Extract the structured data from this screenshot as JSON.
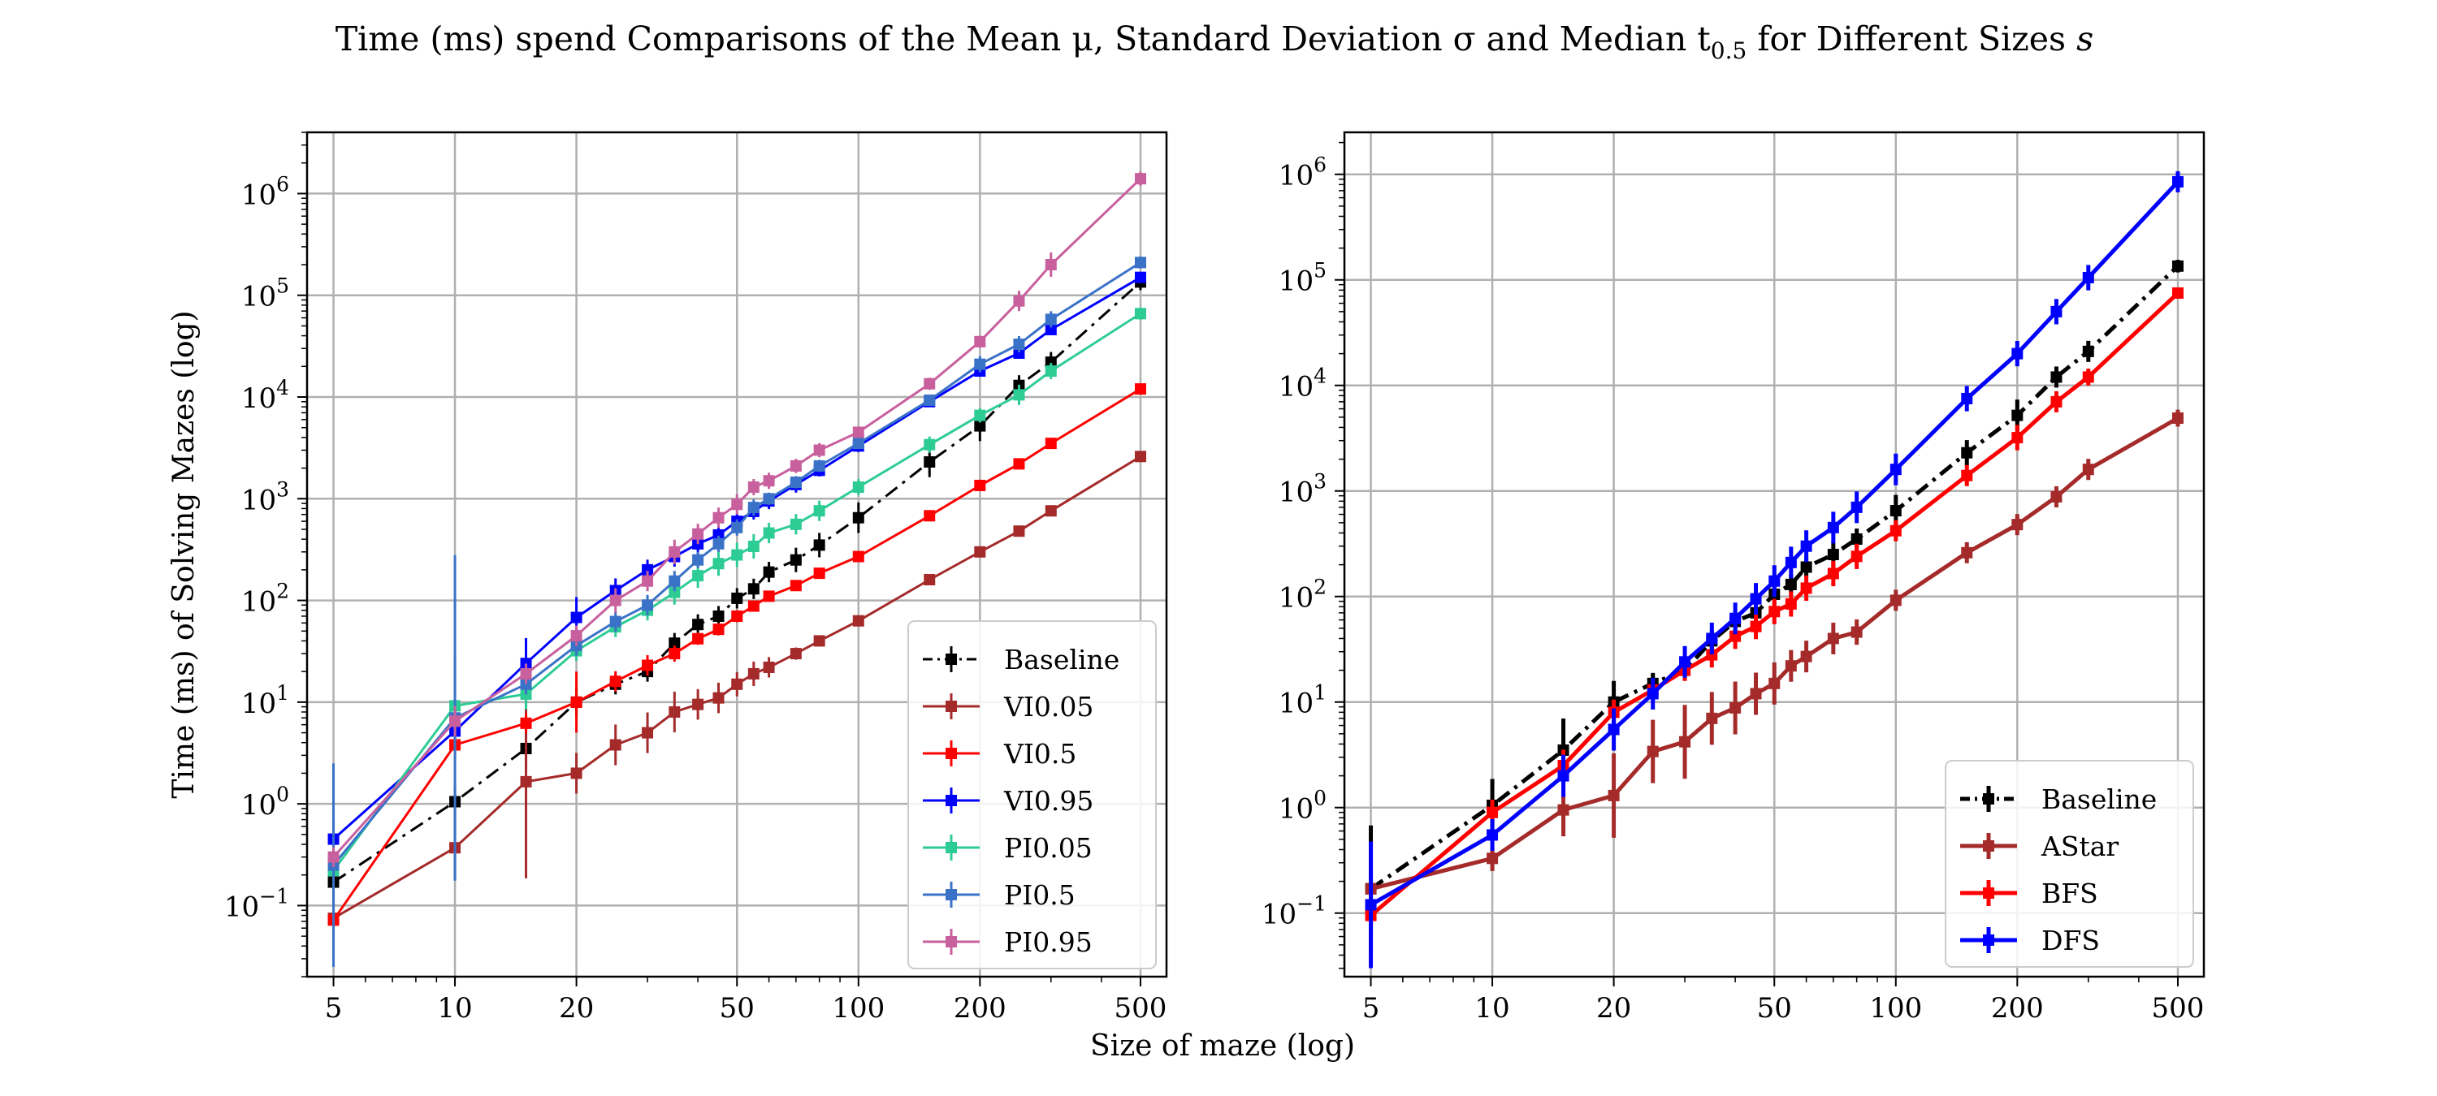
{
  "figure": {
    "title": "Time (ms) spend Comparisons of the Mean μ, Standard Deviation σ and Median t",
    "title_subscript": "0.5",
    "title_tail": " for Different Sizes ",
    "title_var": "s",
    "shared_xlabel": "Size of maze (log)"
  },
  "chart_data": [
    {
      "type": "line",
      "xscale": "log",
      "yscale": "log",
      "xlim": [
        4.3,
        580
      ],
      "ylim": [
        0.02,
        4000000
      ],
      "ylabel": "Time (ms) of Solving Mazes (log)",
      "xlabel": "Size of maze (log)",
      "grid": true,
      "legend": "bottom-right",
      "x_ticks": [
        5,
        10,
        20,
        50,
        100,
        200,
        500
      ],
      "y_ticks": [
        {
          "value": 0.1,
          "label": "10",
          "exp": "−1"
        },
        {
          "value": 1,
          "label": "10",
          "exp": "0"
        },
        {
          "value": 10,
          "label": "10",
          "exp": "1"
        },
        {
          "value": 100,
          "label": "10",
          "exp": "2"
        },
        {
          "value": 1000,
          "label": "10",
          "exp": "3"
        },
        {
          "value": 10000,
          "label": "10",
          "exp": "4"
        },
        {
          "value": 100000,
          "label": "10",
          "exp": "5"
        },
        {
          "value": 1000000,
          "label": "10",
          "exp": "6"
        }
      ],
      "series": [
        {
          "name": "Baseline",
          "color": "#000000",
          "dash": "dashdot",
          "x": [
            5,
            10,
            15,
            20,
            25,
            30,
            35,
            40,
            45,
            50,
            55,
            60,
            70,
            80,
            100,
            150,
            200,
            250,
            300,
            500
          ],
          "y": [
            0.17,
            1.05,
            3.5,
            10,
            15,
            20,
            38,
            58,
            70,
            105,
            130,
            190,
            250,
            350,
            650,
            2300,
            5200,
            13000,
            22000,
            135000
          ],
          "err": [
            0.25,
            0.15,
            0.2,
            0.15,
            0.1,
            0.1,
            0.1,
            0.1,
            0.1,
            0.1,
            0.1,
            0.1,
            0.12,
            0.12,
            0.15,
            0.15,
            0.15,
            0.1,
            0.1,
            0.08
          ]
        },
        {
          "name": "VI0.05",
          "color": "#a52a2a",
          "dash": "solid",
          "x": [
            5,
            10,
            15,
            20,
            25,
            30,
            35,
            40,
            45,
            50,
            55,
            60,
            70,
            80,
            100,
            150,
            200,
            250,
            300,
            500
          ],
          "y": [
            0.075,
            0.37,
            1.65,
            2.0,
            3.8,
            5.0,
            8.0,
            9.5,
            11,
            15,
            19,
            22,
            30,
            40,
            63,
            160,
            300,
            480,
            760,
            2600
          ],
          "err": [
            0.15,
            0.3,
            0.95,
            0.2,
            0.2,
            0.2,
            0.2,
            0.15,
            0.15,
            0.12,
            0.12,
            0.1,
            0.06,
            0.05,
            0.05,
            0.04,
            0.04,
            0.04,
            0.04,
            0.04
          ]
        },
        {
          "name": "VI0.5",
          "color": "#ff0000",
          "dash": "solid",
          "x": [
            5,
            10,
            15,
            20,
            25,
            30,
            35,
            40,
            45,
            50,
            55,
            60,
            70,
            80,
            100,
            150,
            200,
            250,
            300,
            500
          ],
          "y": [
            0.072,
            3.8,
            6.2,
            10,
            16,
            23,
            30,
            42,
            52,
            70,
            88,
            110,
            140,
            185,
            270,
            680,
            1350,
            2200,
            3500,
            12000
          ],
          "err": [
            0.05,
            0.1,
            0.1,
            0.3,
            0.1,
            0.1,
            0.08,
            0.06,
            0.06,
            0.06,
            0.05,
            0.05,
            0.05,
            0.04,
            0.04,
            0.04,
            0.04,
            0.03,
            0.03,
            0.03
          ]
        },
        {
          "name": "VI0.95",
          "color": "#0000ff",
          "dash": "solid",
          "x": [
            5,
            10,
            15,
            20,
            25,
            30,
            35,
            40,
            45,
            50,
            55,
            60,
            70,
            80,
            100,
            150,
            200,
            250,
            300,
            500
          ],
          "y": [
            0.45,
            5.2,
            24,
            68,
            125,
            200,
            270,
            360,
            440,
            600,
            750,
            950,
            1380,
            1900,
            3300,
            9000,
            18000,
            27000,
            46000,
            150000
          ],
          "err": [
            0.2,
            0.1,
            0.25,
            0.2,
            0.12,
            0.1,
            0.1,
            0.1,
            0.1,
            0.08,
            0.08,
            0.08,
            0.08,
            0.06,
            0.06,
            0.05,
            0.05,
            0.05,
            0.05,
            0.05
          ]
        },
        {
          "name": "PI0.05",
          "color": "#2ecc95",
          "dash": "solid",
          "x": [
            5,
            10,
            15,
            20,
            25,
            30,
            35,
            40,
            45,
            50,
            55,
            60,
            70,
            80,
            100,
            150,
            200,
            250,
            300,
            500
          ],
          "y": [
            0.22,
            9.2,
            12,
            32,
            55,
            80,
            120,
            175,
            230,
            280,
            340,
            460,
            560,
            760,
            1300,
            3400,
            6600,
            10500,
            18000,
            66000
          ],
          "err": [
            0.15,
            0.5,
            0.15,
            0.1,
            0.1,
            0.1,
            0.12,
            0.12,
            0.12,
            0.12,
            0.12,
            0.1,
            0.1,
            0.1,
            0.08,
            0.08,
            0.07,
            0.1,
            0.08,
            0.06
          ]
        },
        {
          "name": "PI0.5",
          "color": "#3a72c8",
          "dash": "solid",
          "x": [
            5,
            10,
            15,
            20,
            25,
            30,
            35,
            40,
            45,
            50,
            55,
            60,
            70,
            80,
            100,
            150,
            200,
            250,
            300,
            500
          ],
          "y": [
            0.25,
            7.0,
            15,
            36,
            62,
            90,
            155,
            250,
            360,
            520,
            820,
            1000,
            1450,
            2100,
            3500,
            9300,
            21000,
            33000,
            58000,
            210000
          ],
          "err": [
            1.0,
            1.6,
            0.1,
            0.1,
            0.1,
            0.1,
            0.1,
            0.08,
            0.08,
            0.08,
            0.08,
            0.06,
            0.06,
            0.06,
            0.05,
            0.05,
            0.08,
            0.08,
            0.08,
            0.06
          ]
        },
        {
          "name": "PI0.95",
          "color": "#c8609e",
          "dash": "solid",
          "x": [
            5,
            10,
            15,
            20,
            25,
            30,
            35,
            40,
            45,
            50,
            55,
            60,
            70,
            80,
            100,
            150,
            200,
            250,
            300,
            500
          ],
          "y": [
            0.3,
            6.5,
            19,
            45,
            100,
            155,
            300,
            450,
            650,
            880,
            1300,
            1500,
            2100,
            3000,
            4500,
            13500,
            35000,
            88000,
            200000,
            1400000
          ],
          "err": [
            0.1,
            0.15,
            0.1,
            0.1,
            0.12,
            0.1,
            0.12,
            0.1,
            0.1,
            0.1,
            0.08,
            0.08,
            0.07,
            0.07,
            0.05,
            0.06,
            0.06,
            0.1,
            0.12,
            0.07
          ]
        }
      ]
    },
    {
      "type": "line",
      "xscale": "log",
      "yscale": "log",
      "xlim": [
        4.3,
        580
      ],
      "ylim": [
        0.025,
        2500000
      ],
      "xlabel": "Size of maze (log)",
      "ylabel": "",
      "grid": true,
      "legend": "bottom-right",
      "x_ticks": [
        5,
        10,
        20,
        50,
        100,
        200,
        500
      ],
      "y_ticks": [
        {
          "value": 0.1,
          "label": "10",
          "exp": "−1"
        },
        {
          "value": 1,
          "label": "10",
          "exp": "0"
        },
        {
          "value": 10,
          "label": "10",
          "exp": "1"
        },
        {
          "value": 100,
          "label": "10",
          "exp": "2"
        },
        {
          "value": 1000,
          "label": "10",
          "exp": "3"
        },
        {
          "value": 10000,
          "label": "10",
          "exp": "4"
        },
        {
          "value": 100000,
          "label": "10",
          "exp": "5"
        },
        {
          "value": 1000000,
          "label": "10",
          "exp": "6"
        }
      ],
      "series": [
        {
          "name": "Baseline",
          "color": "#000000",
          "dash": "dashdot",
          "x": [
            5,
            10,
            15,
            20,
            25,
            30,
            35,
            40,
            45,
            50,
            55,
            60,
            70,
            80,
            100,
            150,
            200,
            250,
            300,
            500
          ],
          "y": [
            0.17,
            1.05,
            3.5,
            10,
            15,
            20,
            38,
            58,
            70,
            105,
            130,
            190,
            250,
            350,
            650,
            2300,
            5200,
            12000,
            21000,
            135000
          ],
          "err": [
            0.6,
            0.25,
            0.3,
            0.2,
            0.1,
            0.1,
            0.1,
            0.1,
            0.1,
            0.1,
            0.1,
            0.1,
            0.12,
            0.1,
            0.15,
            0.12,
            0.15,
            0.1,
            0.1,
            0.06
          ]
        },
        {
          "name": "AStar",
          "color": "#a52a2a",
          "dash": "solid",
          "x": [
            5,
            10,
            15,
            20,
            25,
            30,
            35,
            40,
            45,
            50,
            55,
            60,
            70,
            80,
            100,
            150,
            200,
            250,
            300,
            500
          ],
          "y": [
            0.17,
            0.33,
            0.95,
            1.3,
            3.4,
            4.2,
            7.0,
            8.8,
            12,
            15,
            22,
            27,
            40,
            46,
            92,
            260,
            480,
            880,
            1600,
            4900
          ],
          "err": [
            0.12,
            0.12,
            0.25,
            0.4,
            0.3,
            0.35,
            0.25,
            0.25,
            0.2,
            0.2,
            0.15,
            0.15,
            0.15,
            0.12,
            0.1,
            0.1,
            0.1,
            0.1,
            0.1,
            0.08
          ]
        },
        {
          "name": "BFS",
          "color": "#ff0000",
          "dash": "solid",
          "x": [
            5,
            10,
            15,
            20,
            25,
            30,
            35,
            40,
            45,
            50,
            55,
            60,
            70,
            80,
            100,
            150,
            200,
            250,
            300,
            500
          ],
          "y": [
            0.095,
            0.9,
            2.5,
            8.0,
            13,
            20,
            28,
            42,
            52,
            72,
            85,
            120,
            165,
            240,
            420,
            1400,
            3200,
            7000,
            12000,
            75000
          ],
          "err": [
            0.2,
            0.12,
            0.15,
            0.12,
            0.1,
            0.1,
            0.12,
            0.12,
            0.12,
            0.12,
            0.12,
            0.12,
            0.12,
            0.12,
            0.1,
            0.1,
            0.12,
            0.1,
            0.08,
            0.04
          ]
        },
        {
          "name": "DFS",
          "color": "#0000ff",
          "dash": "solid",
          "x": [
            5,
            10,
            15,
            20,
            25,
            30,
            35,
            40,
            45,
            50,
            55,
            60,
            70,
            80,
            100,
            150,
            200,
            250,
            300,
            500
          ],
          "y": [
            0.12,
            0.55,
            2.0,
            5.5,
            12,
            24,
            40,
            62,
            95,
            140,
            210,
            300,
            450,
            700,
            1600,
            7500,
            20000,
            50000,
            105000,
            850000
          ],
          "err": [
            0.6,
            0.15,
            0.2,
            0.2,
            0.15,
            0.15,
            0.15,
            0.15,
            0.15,
            0.15,
            0.15,
            0.15,
            0.15,
            0.15,
            0.15,
            0.12,
            0.12,
            0.12,
            0.12,
            0.1
          ]
        }
      ]
    }
  ]
}
